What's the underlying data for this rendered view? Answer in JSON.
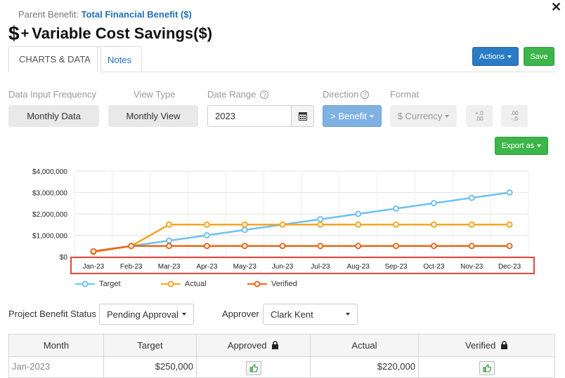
{
  "header": {
    "parent_label": "Parent Benefit:",
    "parent_link": "Total Financial Benefit ($)",
    "title_prefix": "+",
    "title": "Variable Cost Savings($)",
    "dollar_glyph": "$"
  },
  "tabs": [
    {
      "label": "CHARTS & DATA",
      "active": true
    },
    {
      "label": "Notes",
      "active": false
    }
  ],
  "toolbar": {
    "actions_label": "Actions",
    "save_label": "Save",
    "export_label": "Export as"
  },
  "filters": {
    "frequency": {
      "label": "Data Input Frequency",
      "value": "Monthly Data"
    },
    "view_type": {
      "label": "View Type",
      "value": "Monthly View"
    },
    "date_range": {
      "label": "Date Range",
      "value": "2023"
    },
    "direction": {
      "label": "Direction",
      "value": "> Benefit"
    },
    "format": {
      "label": "Format",
      "value": "$ Currency"
    },
    "decimals": [
      {
        "top": "+.0",
        "bottom": ".00"
      },
      {
        "top": ".00",
        "bottom": "-.0"
      }
    ]
  },
  "chart_data": {
    "type": "line",
    "categories": [
      "Jan-23",
      "Feb-23",
      "Mar-23",
      "Apr-23",
      "May-23",
      "Jun-23",
      "Jul-23",
      "Aug-23",
      "Sep-23",
      "Oct-23",
      "Nov-23",
      "Dec-23"
    ],
    "y_ticks": [
      "$4,000,000",
      "$3,000,000",
      "$2,000,000",
      "$1,000,000",
      "$0"
    ],
    "ylim": [
      0,
      4000000
    ],
    "series": [
      {
        "name": "Target",
        "color": "#6ec1f0",
        "values": [
          250000,
          500000,
          750000,
          1000000,
          1250000,
          1500000,
          1750000,
          2000000,
          2250000,
          2500000,
          2750000,
          3000000
        ]
      },
      {
        "name": "Actual",
        "color": "#f5a623",
        "values": [
          220000,
          500000,
          1500000,
          1500000,
          1500000,
          1500000,
          1500000,
          1500000,
          1500000,
          1500000,
          1500000,
          1500000
        ]
      },
      {
        "name": "Verified",
        "color": "#e8671c",
        "values": [
          250000,
          500000,
          500000,
          500000,
          500000,
          500000,
          500000,
          500000,
          500000,
          500000,
          500000,
          500000
        ]
      }
    ],
    "grid": true,
    "legend": "bottom-left"
  },
  "status": {
    "label": "Project Benefit Status",
    "value": "Pending Approval",
    "approver_label": "Approver",
    "approver_value": "Clark Kent"
  },
  "table": {
    "headers": [
      "Month",
      "Target",
      "Approved",
      "Actual",
      "Verified"
    ],
    "rows": [
      {
        "month": "Jan-2023",
        "target": "$250,000",
        "actual": "$220,000"
      }
    ]
  }
}
